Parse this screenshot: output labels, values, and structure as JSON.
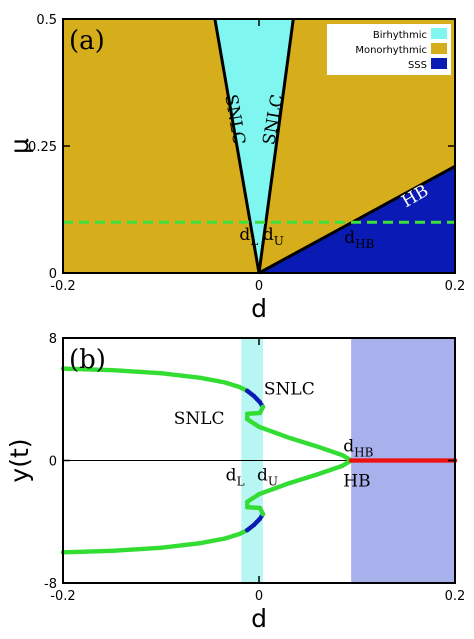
{
  "chart_data": [
    {
      "panel": "(a)",
      "type": "area",
      "xlabel": "d",
      "ylabel": "μ",
      "xlim": [
        -0.2,
        0.2
      ],
      "ylim": [
        0,
        0.5
      ],
      "xticks": [
        {
          "value": -0.2,
          "label": "-0.2"
        },
        {
          "value": 0,
          "label": "0"
        },
        {
          "value": 0.2,
          "label": "0.2"
        }
      ],
      "yticks": [
        {
          "value": 0,
          "label": "0"
        },
        {
          "value": 0.25,
          "label": "0.25"
        },
        {
          "value": 0.5,
          "label": "0.5"
        }
      ],
      "regions": [
        {
          "name": "Monorhythmic",
          "color": "#d6ad1a",
          "polygon": [
            [
              -0.2,
              0
            ],
            [
              0.2,
              0
            ],
            [
              0.2,
              0.5
            ],
            [
              -0.2,
              0.5
            ]
          ]
        },
        {
          "name": "Birhythmic",
          "color": "#7ff7f0",
          "polygon": [
            [
              -0.045,
              0.5
            ],
            [
              0,
              0
            ],
            [
              0.035,
              0.5
            ]
          ]
        },
        {
          "name": "SSS",
          "color": "#0a1ab4",
          "polygon": [
            [
              0,
              0
            ],
            [
              0.2,
              0
            ],
            [
              0.2,
              0.21
            ]
          ]
        }
      ],
      "boundaries": [
        {
          "name": "SNLC",
          "points": [
            [
              -0.045,
              0.5
            ],
            [
              0,
              0
            ]
          ]
        },
        {
          "name": "SNLC",
          "points": [
            [
              0.035,
              0.5
            ],
            [
              0,
              0
            ]
          ]
        },
        {
          "name": "HB",
          "points": [
            [
              0,
              0
            ],
            [
              0.2,
              0.21
            ]
          ]
        }
      ],
      "reference_line": {
        "y": 0.1,
        "color": "#3ee03e",
        "style": "dashed"
      },
      "legend": {
        "placement": "top-right",
        "entries": [
          {
            "label": "Birhythmic",
            "color": "#7ff7f0"
          },
          {
            "label": "Monorhythmic",
            "color": "#d6ad1a"
          },
          {
            "label": "SSS",
            "color": "#0a1ab4"
          }
        ]
      },
      "annotations": [
        {
          "text": "SNLC",
          "x": -0.03,
          "y": 0.3,
          "rotate": 80
        },
        {
          "text": "SNLC",
          "x": 0.02,
          "y": 0.3,
          "rotate": -80
        },
        {
          "text": "HB",
          "x": 0.162,
          "y": 0.142,
          "rotate": -30,
          "light": true
        },
        {
          "text": "d",
          "sub": "L",
          "x": -0.02,
          "y": 0.065
        },
        {
          "text": "d",
          "sub": "U",
          "x": 0.004,
          "y": 0.065
        },
        {
          "text": "d",
          "sub": "HB",
          "x": 0.087,
          "y": 0.059
        }
      ]
    },
    {
      "panel": "(b)",
      "type": "scatter",
      "xlabel": "d",
      "ylabel": "y(t)",
      "xlim": [
        -0.2,
        0.2
      ],
      "ylim": [
        -8,
        8
      ],
      "xticks": [
        {
          "value": -0.2,
          "label": "-0.2"
        },
        {
          "value": 0,
          "label": "0"
        },
        {
          "value": 0.2,
          "label": "0.2"
        }
      ],
      "yticks": [
        {
          "value": -8,
          "label": "-8"
        },
        {
          "value": 0,
          "label": "0"
        },
        {
          "value": 8,
          "label": "8"
        }
      ],
      "shaded_regions": [
        {
          "x": [
            -0.018,
            0.004
          ],
          "color": "#b8f6f4"
        },
        {
          "x": [
            0.094,
            0.2
          ],
          "color": "#a9b1ec"
        }
      ],
      "zero_line": {
        "y": 0,
        "color": "#000000"
      },
      "series": [
        {
          "color": "#33dd33",
          "points": [
            [
              -0.2,
              6.0
            ],
            [
              -0.15,
              5.9
            ],
            [
              -0.1,
              5.7
            ],
            [
              -0.06,
              5.4
            ],
            [
              -0.035,
              5.1
            ],
            [
              -0.02,
              4.8
            ],
            [
              -0.012,
              4.55
            ]
          ]
        },
        {
          "color": "#0a1ab4",
          "points": [
            [
              -0.012,
              4.55
            ],
            [
              -0.005,
              4.2
            ],
            [
              0.001,
              3.8
            ],
            [
              0.004,
              3.5
            ]
          ]
        },
        {
          "color": "#33dd33",
          "points": [
            [
              0.004,
              3.5
            ],
            [
              0.001,
              3.1
            ],
            [
              -0.012,
              3.05
            ],
            [
              -0.012,
              2.7
            ],
            [
              0.0,
              2.2
            ],
            [
              0.03,
              1.5
            ],
            [
              0.06,
              0.9
            ],
            [
              0.085,
              0.35
            ],
            [
              0.094,
              0.0
            ]
          ]
        },
        {
          "color": "#33dd33",
          "points": [
            [
              -0.2,
              -6.0
            ],
            [
              -0.15,
              -5.9
            ],
            [
              -0.1,
              -5.7
            ],
            [
              -0.06,
              -5.4
            ],
            [
              -0.035,
              -5.1
            ],
            [
              -0.02,
              -4.8
            ],
            [
              -0.012,
              -4.55
            ]
          ]
        },
        {
          "color": "#0a1ab4",
          "points": [
            [
              -0.012,
              -4.55
            ],
            [
              -0.005,
              -4.2
            ],
            [
              0.001,
              -3.8
            ],
            [
              0.004,
              -3.5
            ]
          ]
        },
        {
          "color": "#33dd33",
          "points": [
            [
              0.004,
              -3.5
            ],
            [
              0.001,
              -3.1
            ],
            [
              -0.012,
              -3.05
            ],
            [
              -0.012,
              -2.7
            ],
            [
              0.0,
              -2.2
            ],
            [
              0.03,
              -1.5
            ],
            [
              0.06,
              -0.9
            ],
            [
              0.085,
              -0.35
            ],
            [
              0.094,
              0.0
            ]
          ]
        },
        {
          "color": "#ee1111",
          "points": [
            [
              0.094,
              0.0
            ],
            [
              0.2,
              0.0
            ]
          ]
        }
      ],
      "annotations": [
        {
          "text": "SNLC",
          "x": 0.005,
          "y": 4.3
        },
        {
          "text": "SNLC",
          "x": -0.087,
          "y": 2.4
        },
        {
          "text": "d",
          "sub": "L",
          "x": -0.034,
          "y": -1.3
        },
        {
          "text": "d",
          "sub": "U",
          "x": -0.002,
          "y": -1.3
        },
        {
          "text": "d",
          "sub": "HB",
          "x": 0.086,
          "y": 0.6
        },
        {
          "text": "HB",
          "x": 0.086,
          "y": -1.7
        }
      ]
    }
  ]
}
